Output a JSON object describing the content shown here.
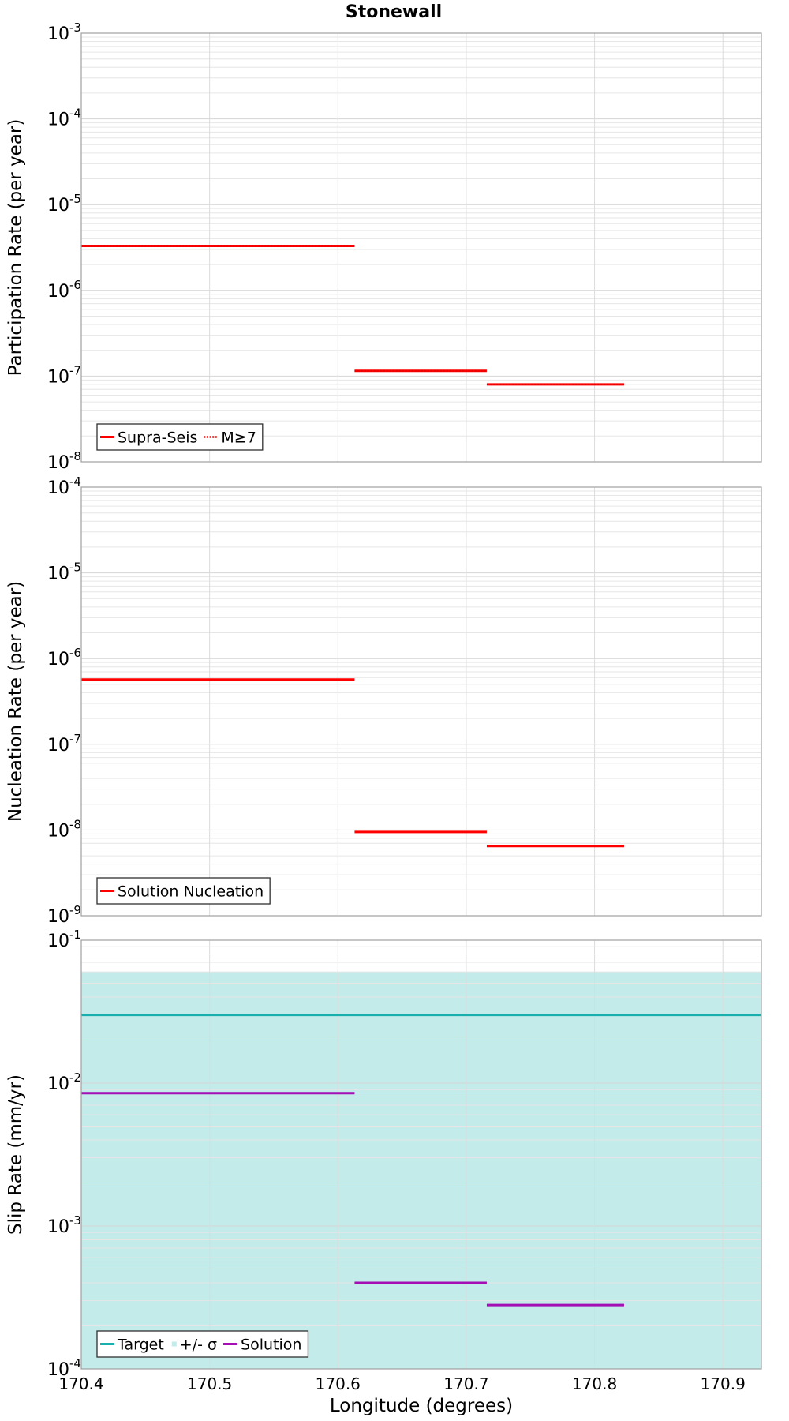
{
  "chart_data": [
    {
      "type": "line",
      "title": "Stonewall",
      "ylabel": "Participation Rate (per year)",
      "xlabel": "",
      "xlim": [
        170.4,
        170.93
      ],
      "ylim": [
        1e-08,
        0.001
      ],
      "yscale": "log",
      "ytick_labels": [
        "-8",
        "-7",
        "-6",
        "-5",
        "-4",
        "-3"
      ],
      "grid": true,
      "legend_position": "bottom-left",
      "legend": [
        {
          "label": "Supra-Seis",
          "color": "#ff0000",
          "style": "solid"
        },
        {
          "label": "M≥7",
          "color": "#ff0000",
          "style": "dotted"
        }
      ],
      "series": [
        {
          "name": "Supra-Seis",
          "color": "#ff0000",
          "style": "solid",
          "segments": [
            {
              "x": [
                170.4,
                170.613
              ],
              "y": 3.3e-06
            },
            {
              "x": [
                170.613,
                170.716
              ],
              "y": 1.15e-07
            },
            {
              "x": [
                170.716,
                170.823
              ],
              "y": 8e-08
            }
          ]
        },
        {
          "name": "M≥7",
          "color": "#ff0000",
          "style": "dotted",
          "segments": [
            {
              "x": [
                170.4,
                170.613
              ],
              "y": 3.3e-06
            },
            {
              "x": [
                170.613,
                170.716
              ],
              "y": 1.15e-07
            },
            {
              "x": [
                170.716,
                170.823
              ],
              "y": 8e-08
            }
          ]
        }
      ]
    },
    {
      "type": "line",
      "title": "",
      "ylabel": "Nucleation Rate (per year)",
      "xlabel": "",
      "xlim": [
        170.4,
        170.93
      ],
      "ylim": [
        1e-09,
        0.0001
      ],
      "yscale": "log",
      "ytick_labels": [
        "-9",
        "-8",
        "-7",
        "-6",
        "-5",
        "-4"
      ],
      "grid": true,
      "legend_position": "bottom-left",
      "legend": [
        {
          "label": "Solution Nucleation",
          "color": "#ff0000",
          "style": "solid"
        }
      ],
      "series": [
        {
          "name": "Solution Nucleation",
          "color": "#ff0000",
          "style": "solid",
          "segments": [
            {
              "x": [
                170.4,
                170.613
              ],
              "y": 5.7e-07
            },
            {
              "x": [
                170.613,
                170.716
              ],
              "y": 9.5e-09
            },
            {
              "x": [
                170.716,
                170.823
              ],
              "y": 6.5e-09
            }
          ]
        }
      ]
    },
    {
      "type": "line",
      "title": "",
      "ylabel": "Slip Rate (mm/yr)",
      "xlabel": "Longitude (degrees)",
      "xlim": [
        170.4,
        170.93
      ],
      "ylim": [
        0.0001,
        0.1
      ],
      "yscale": "log",
      "ytick_labels": [
        "-4",
        "-3",
        "-2",
        "-1"
      ],
      "xtick_labels": [
        "170.4",
        "170.5",
        "170.6",
        "170.7",
        "170.8",
        "170.9"
      ],
      "xtick_values": [
        170.4,
        170.5,
        170.6,
        170.7,
        170.8,
        170.9
      ],
      "grid": true,
      "legend_position": "bottom-left",
      "legend": [
        {
          "label": "Target",
          "color": "#1aafaf",
          "style": "solid"
        },
        {
          "label": "+/- σ",
          "color": "#c2ebea",
          "style": "fill"
        },
        {
          "label": "Solution",
          "color": "#a30fb4",
          "style": "solid"
        }
      ],
      "band": {
        "name": "+/- σ",
        "color": "#c2ebea",
        "x": [
          170.4,
          170.93
        ],
        "y": [
          0.0001,
          0.06
        ]
      },
      "series": [
        {
          "name": "Target",
          "color": "#1aafaf",
          "style": "solid",
          "segments": [
            {
              "x": [
                170.4,
                170.93
              ],
              "y": 0.03
            }
          ]
        },
        {
          "name": "Solution",
          "color": "#a30fb4",
          "style": "solid",
          "segments": [
            {
              "x": [
                170.4,
                170.613
              ],
              "y": 0.0085
            },
            {
              "x": [
                170.613,
                170.716
              ],
              "y": 0.0004
            },
            {
              "x": [
                170.716,
                170.823
              ],
              "y": 0.00028
            }
          ]
        }
      ]
    }
  ]
}
